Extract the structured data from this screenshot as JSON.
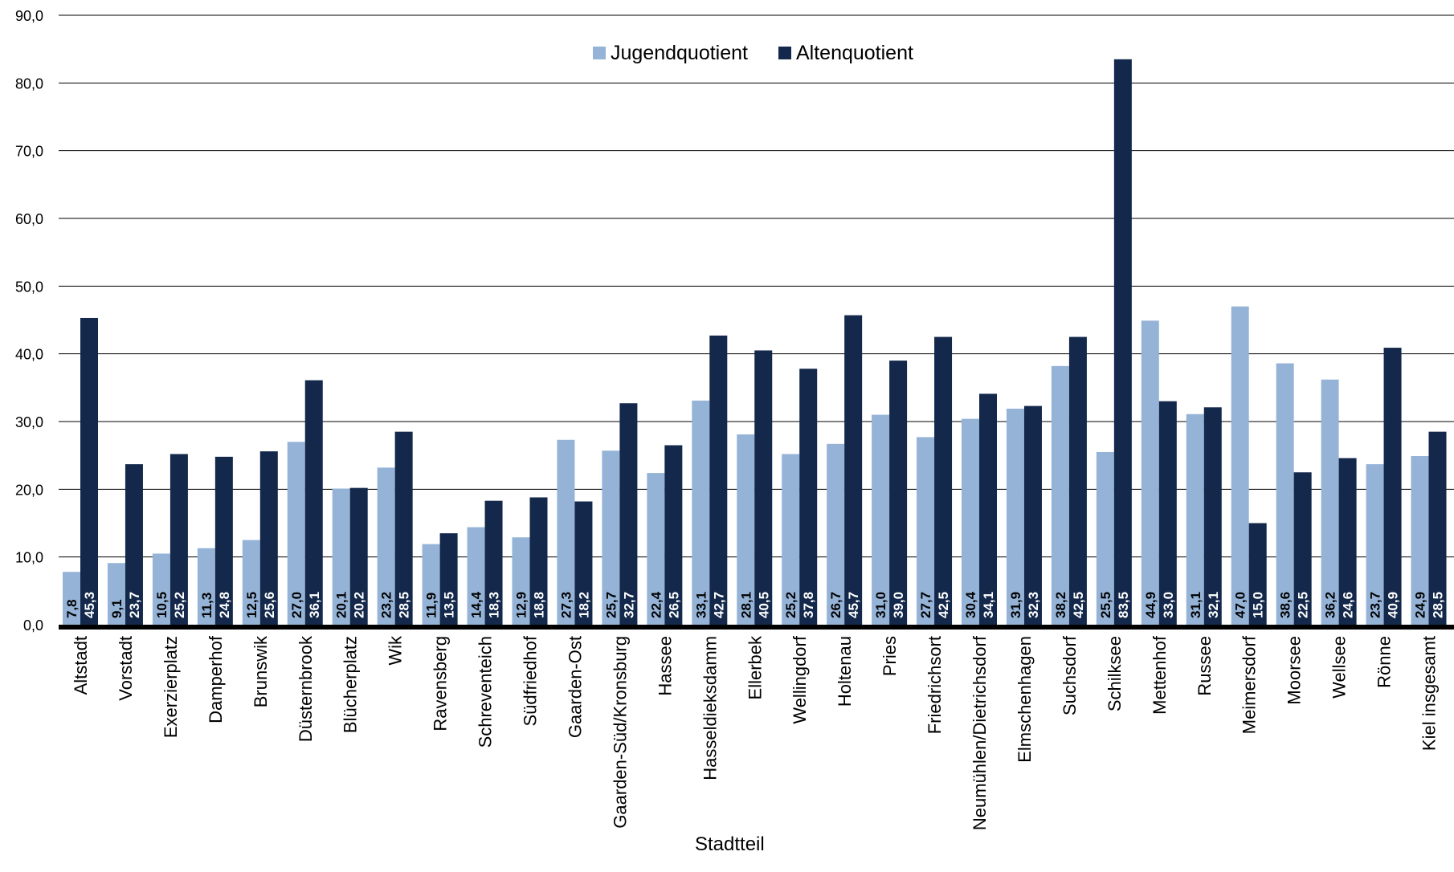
{
  "chart_data": {
    "type": "bar",
    "xlabel": "Stadtteil",
    "ylabel": "",
    "ylim": [
      0,
      90
    ],
    "yticks": [
      "0,0",
      "10,0",
      "20,0",
      "30,0",
      "40,0",
      "50,0",
      "60,0",
      "70,0",
      "80,0",
      "90,0"
    ],
    "grid": true,
    "legend_position": "top-center",
    "categories": [
      "Altstadt",
      "Vorstadt",
      "Exerzierplatz",
      "Damperhof",
      "Brunswik",
      "Düsternbrook",
      "Blücherplatz",
      "Wik",
      "Ravensberg",
      "Schreventeich",
      "Südfriedhof",
      "Gaarden-Ost",
      "Gaarden-Süd/Kronsburg",
      "Hassee",
      "Hasseldieksdamm",
      "Ellerbek",
      "Wellingdorf",
      "Holtenau",
      "Pries",
      "Friedrichsort",
      "Neumühlen/Dietrichsdorf",
      "Elmschenhagen",
      "Suchsdorf",
      "Schilksee",
      "Mettenhof",
      "Russee",
      "Meimersdorf",
      "Moorsee",
      "Wellsee",
      "Rönne",
      "Kiel insgesamt"
    ],
    "series": [
      {
        "name": "Jugendquotient",
        "color": "#95b3d7",
        "values": [
          7.8,
          9.1,
          10.5,
          11.3,
          12.5,
          27.0,
          20.1,
          23.2,
          11.9,
          14.4,
          12.9,
          27.3,
          25.7,
          22.4,
          33.1,
          28.1,
          25.2,
          26.7,
          31.0,
          27.7,
          30.4,
          31.9,
          38.2,
          25.5,
          44.9,
          31.1,
          47.0,
          38.6,
          36.2,
          23.7,
          24.9
        ],
        "labels": [
          "7,8",
          "9,1",
          "10,5",
          "11,3",
          "12,5",
          "27,0",
          "20,1",
          "23,2",
          "11,9",
          "14,4",
          "12,9",
          "27,3",
          "25,7",
          "22,4",
          "33,1",
          "28,1",
          "25,2",
          "26,7",
          "31,0",
          "27,7",
          "30,4",
          "31,9",
          "38,2",
          "25,5",
          "44,9",
          "31,1",
          "47,0",
          "38,6",
          "36,2",
          "23,7",
          "24,9"
        ]
      },
      {
        "name": "Altenquotient",
        "color": "#13284a",
        "values": [
          45.3,
          23.7,
          25.2,
          24.8,
          25.6,
          36.1,
          20.2,
          28.5,
          13.5,
          18.3,
          18.8,
          18.2,
          32.7,
          26.5,
          42.7,
          40.5,
          37.8,
          45.7,
          39.0,
          42.5,
          34.1,
          32.3,
          42.5,
          83.5,
          33.0,
          32.1,
          15.0,
          22.5,
          24.6,
          40.9,
          28.5
        ],
        "labels": [
          "45,3",
          "23,7",
          "25,2",
          "24,8",
          "25,6",
          "36,1",
          "20,2",
          "28,5",
          "13,5",
          "18,3",
          "18,8",
          "18,2",
          "32,7",
          "26,5",
          "42,7",
          "40,5",
          "37,8",
          "45,7",
          "39,0",
          "42,5",
          "34,1",
          "32,3",
          "42,5",
          "83,5",
          "33,0",
          "32,1",
          "15,0",
          "22,5",
          "24,6",
          "40,9",
          "28,5"
        ]
      }
    ]
  }
}
